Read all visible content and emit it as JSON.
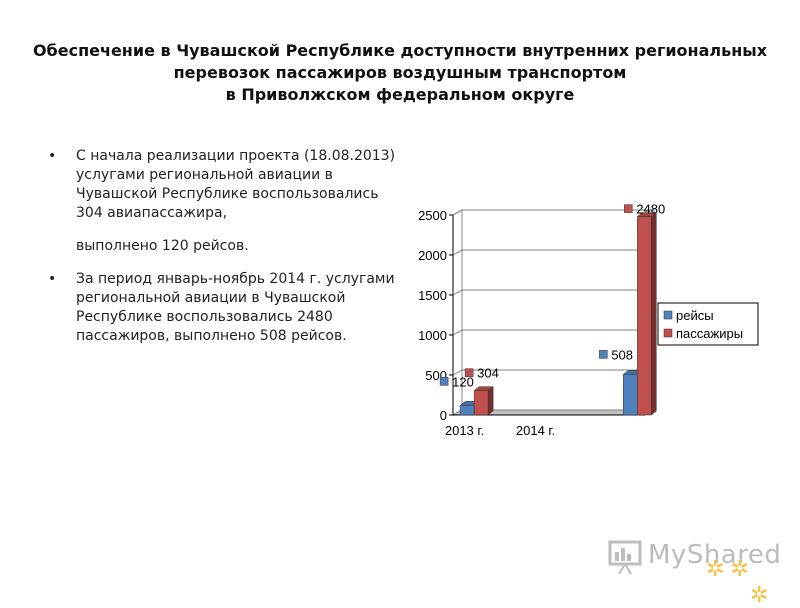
{
  "title": {
    "line1": "Обеспечение в Чувашской Республике доступности внутренних региональных",
    "line2": "перевозок пассажиров воздушным транспортом",
    "line3": "в Приволжском федеральном округе"
  },
  "bullets": [
    {
      "text": "С начала реализации проекта (18.08.2013) услугами региональной авиации в Чувашской Республике воспользовались 304 авиапассажира,",
      "extra": "выполнено 120 рейсов."
    },
    {
      "text": "За период январь-ноябрь 2014 г. услугами региональной авиации в Чувашской Республике воспользовались 2480 пассажиров, выполнено 508 рейсов.",
      "extra": ""
    }
  ],
  "chart_data": {
    "type": "bar",
    "categories": [
      "2013 г.",
      "2014 г."
    ],
    "series": [
      {
        "name": "рейсы",
        "values": [
          120,
          508
        ],
        "color": "#4f81bd"
      },
      {
        "name": "пассажиры",
        "values": [
          304,
          2480
        ],
        "color": "#c0504d"
      }
    ],
    "ylim": [
      0,
      2500
    ],
    "yticks": [
      0,
      500,
      1000,
      1500,
      2000,
      2500
    ],
    "grid": true,
    "legend_position": "right",
    "data_labels": true
  },
  "logo": {
    "text": "MyShared"
  }
}
